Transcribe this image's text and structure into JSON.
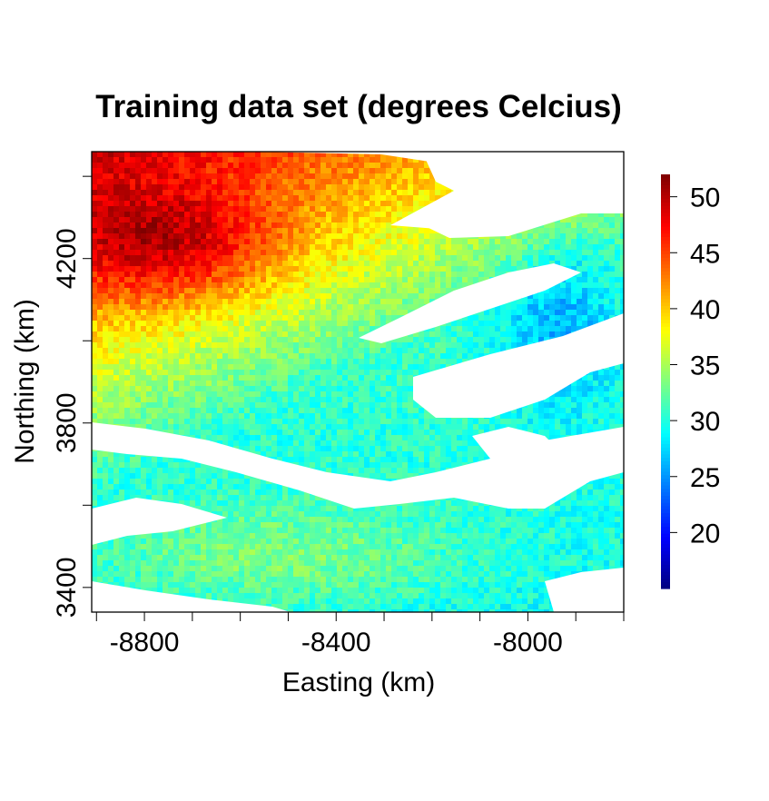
{
  "chart_data": {
    "type": "heatmap",
    "title": "Training data set (degrees Celcius)",
    "xlabel": "Easting (km)",
    "ylabel": "Northing (km)",
    "x_ticks": [
      -8800,
      -8400,
      -8000
    ],
    "y_ticks": [
      3400,
      3800,
      4200
    ],
    "xlim": [
      -8910,
      -7800
    ],
    "ylim": [
      3340,
      4460
    ],
    "value_range": [
      15,
      52
    ],
    "colorbar_ticks": [
      20,
      25,
      30,
      35,
      40,
      45,
      50
    ],
    "colormap": [
      "#00007f",
      "#0000ff",
      "#007fff",
      "#00ffff",
      "#7fff7f",
      "#ffff00",
      "#ff7f00",
      "#ff0000",
      "#7f0000"
    ],
    "missing_color": "#ffffff",
    "spatial_pattern": {
      "hottest_center": {
        "easting": -8750,
        "northing": 4230,
        "value": 50
      },
      "hot_region_extent": {
        "easting": [
          -8910,
          -8400
        ],
        "northing": [
          4050,
          4460
        ]
      },
      "typical_values": {
        "northwest": 46,
        "central": 33,
        "southeast": 30,
        "southwest": 34
      },
      "missing_bands": "diagonal white gaps from northeast toward southwest"
    }
  }
}
